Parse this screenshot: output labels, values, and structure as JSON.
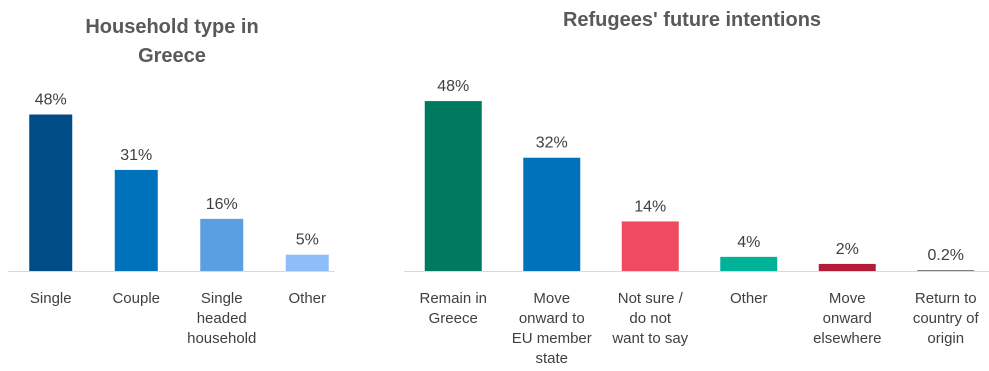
{
  "chart_data": [
    {
      "type": "bar",
      "title_lines": [
        "Household type in",
        "Greece"
      ],
      "categories": [
        [
          "Single"
        ],
        [
          "Couple"
        ],
        [
          "Single",
          "headed",
          "household"
        ],
        [
          "Other"
        ]
      ],
      "values": [
        48,
        31,
        16,
        5
      ],
      "value_labels": [
        "48%",
        "31%",
        "16%",
        "5%"
      ],
      "colors": [
        "#004C86",
        "#0072BC",
        "#5B9FE3",
        "#8EBEF7"
      ],
      "ylim": [
        0,
        50
      ],
      "grid": false,
      "legend": false
    },
    {
      "type": "bar",
      "title_lines": [
        "Refugees' future intentions"
      ],
      "categories": [
        [
          "Remain in",
          "Greece"
        ],
        [
          "Move",
          "onward to",
          "EU member",
          "state"
        ],
        [
          "Not sure /",
          "do not",
          "want to say"
        ],
        [
          "Other"
        ],
        [
          "Move",
          "onward",
          "elsewhere"
        ],
        [
          "Return to",
          "country of",
          "origin"
        ]
      ],
      "values": [
        48,
        32,
        14,
        4,
        2,
        0.2
      ],
      "value_labels": [
        "48%",
        "32%",
        "14%",
        "4%",
        "2%",
        "0.2%"
      ],
      "colors": [
        "#007A5E",
        "#0072BC",
        "#EF4A60",
        "#00B398",
        "#B31B39",
        "#7F7F7F"
      ],
      "ylim": [
        0,
        50
      ],
      "grid": false,
      "legend": false
    }
  ]
}
